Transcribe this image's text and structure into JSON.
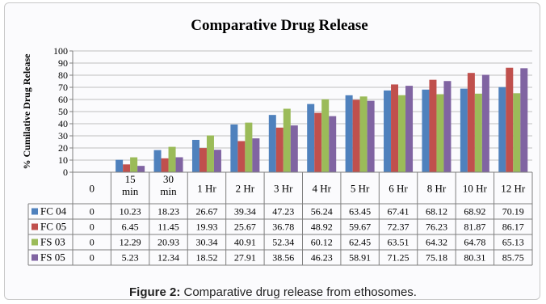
{
  "chart_data": {
    "type": "bar",
    "title": "Comparative Drug Release",
    "ylabel": "% Cumilative Drug Release",
    "xlabel": "",
    "ylim": [
      0,
      100
    ],
    "yticks": [
      0,
      10,
      20,
      30,
      40,
      50,
      60,
      70,
      80,
      90,
      100
    ],
    "grid": true,
    "legend": "table-below",
    "categories": [
      "0",
      "15 min",
      "30 min",
      "1 Hr",
      "2 Hr",
      "3 Hr",
      "4 Hr",
      "5 Hr",
      "6 Hr",
      "8 Hr",
      "10 Hr",
      "12 Hr"
    ],
    "category_lines": [
      [
        "0"
      ],
      [
        "15",
        "min"
      ],
      [
        "30",
        "min"
      ],
      [
        "1 Hr"
      ],
      [
        "2 Hr"
      ],
      [
        "3 Hr"
      ],
      [
        "4 Hr"
      ],
      [
        "5 Hr"
      ],
      [
        "6 Hr"
      ],
      [
        "8 Hr"
      ],
      [
        "10 Hr"
      ],
      [
        "12 Hr"
      ]
    ],
    "series": [
      {
        "name": "FC 04",
        "color": "#4f81bd",
        "values": [
          0,
          10.23,
          18.23,
          26.67,
          39.34,
          47.23,
          56.24,
          63.45,
          67.41,
          68.12,
          68.92,
          70.19
        ],
        "labels": [
          "0",
          "10.23",
          "18.23",
          "26.67",
          "39.34",
          "47.23",
          "56.24",
          "63.45",
          "67.41",
          "68.12",
          "68.92",
          "70.19"
        ]
      },
      {
        "name": "FC 05",
        "color": "#c0504d",
        "values": [
          0,
          6.45,
          11.45,
          19.93,
          25.67,
          36.78,
          48.92,
          59.67,
          72.37,
          76.23,
          81.87,
          86.17
        ],
        "labels": [
          "0",
          "6.45",
          "11.45",
          "19.93",
          "25.67",
          "36.78",
          "48.92",
          "59.67",
          "72.37",
          "76.23",
          "81.87",
          "86.17"
        ]
      },
      {
        "name": "FS 03",
        "color": "#9bbb59",
        "values": [
          0,
          12.29,
          20.93,
          30.34,
          40.91,
          52.34,
          60.12,
          62.45,
          63.51,
          64.32,
          64.78,
          65.13
        ],
        "labels": [
          "0",
          "12.29",
          "20.93",
          "30.34",
          "40.91",
          "52.34",
          "60.12",
          "62.45",
          "63.51",
          "64.32",
          "64.78",
          "65.13"
        ]
      },
      {
        "name": "FS 05",
        "color": "#8064a2",
        "values": [
          0,
          5.23,
          12.34,
          18.52,
          27.91,
          38.56,
          46.23,
          58.91,
          71.25,
          75.18,
          80.31,
          85.75
        ],
        "labels": [
          "0",
          "5.23",
          "12.34",
          "18.52",
          "27.91",
          "38.56",
          "46.23",
          "58.91",
          "71.25",
          "75.18",
          "80.31",
          "85.75"
        ]
      }
    ]
  },
  "caption": {
    "label": "Figure 2:",
    "text": " Comparative drug release from ethosomes."
  }
}
